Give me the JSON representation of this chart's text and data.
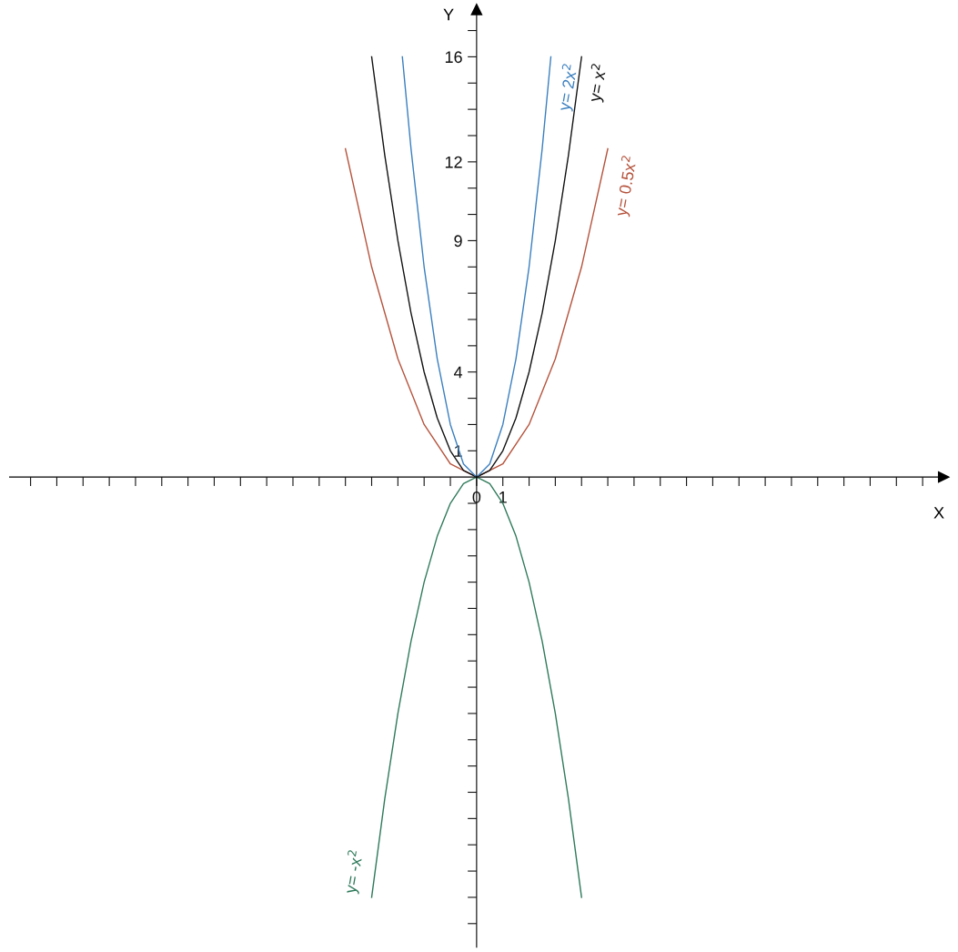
{
  "chart_data": {
    "type": "line",
    "xlabel": "X",
    "ylabel": "Y",
    "grid": false,
    "legend": false,
    "marker": "none",
    "line_style": "solid",
    "xlim": [
      -17.8,
      17.8
    ],
    "ylim": [
      -17.9,
      17.8
    ],
    "xticks": [
      {
        "value": -17,
        "label": null
      },
      {
        "value": -16,
        "label": null
      },
      {
        "value": -15,
        "label": null
      },
      {
        "value": -14,
        "label": null
      },
      {
        "value": -13,
        "label": null
      },
      {
        "value": -12,
        "label": null
      },
      {
        "value": -11,
        "label": null
      },
      {
        "value": -10,
        "label": null
      },
      {
        "value": -9,
        "label": null
      },
      {
        "value": -8,
        "label": null
      },
      {
        "value": -7,
        "label": null
      },
      {
        "value": -6,
        "label": null
      },
      {
        "value": -5,
        "label": null
      },
      {
        "value": -4,
        "label": null
      },
      {
        "value": -3,
        "label": null
      },
      {
        "value": -2,
        "label": null
      },
      {
        "value": -1,
        "label": null
      },
      0,
      1,
      {
        "value": 2,
        "label": null
      },
      {
        "value": 3,
        "label": null
      },
      {
        "value": 4,
        "label": null
      },
      {
        "value": 5,
        "label": null
      },
      {
        "value": 6,
        "label": null
      },
      {
        "value": 7,
        "label": null
      },
      {
        "value": 8,
        "label": null
      },
      {
        "value": 9,
        "label": null
      },
      {
        "value": 10,
        "label": null
      },
      {
        "value": 11,
        "label": null
      },
      {
        "value": 12,
        "label": null
      },
      {
        "value": 13,
        "label": null
      },
      {
        "value": 14,
        "label": null
      },
      {
        "value": 15,
        "label": null
      },
      {
        "value": 16,
        "label": null
      },
      {
        "value": 17,
        "label": null
      }
    ],
    "yticks": [
      {
        "value": -17,
        "label": null
      },
      {
        "value": -16,
        "label": null
      },
      {
        "value": -15,
        "label": null
      },
      {
        "value": -14,
        "label": null
      },
      {
        "value": -13,
        "label": null
      },
      {
        "value": -12,
        "label": null
      },
      {
        "value": -11,
        "label": null
      },
      {
        "value": -10,
        "label": null
      },
      {
        "value": -9,
        "label": null
      },
      {
        "value": -8,
        "label": null
      },
      {
        "value": -7,
        "label": null
      },
      {
        "value": -6,
        "label": null
      },
      {
        "value": -5,
        "label": null
      },
      {
        "value": -4,
        "label": null
      },
      {
        "value": -3,
        "label": null
      },
      {
        "value": -2,
        "label": null
      },
      {
        "value": -1,
        "label": null
      },
      1,
      {
        "value": 2,
        "label": null
      },
      {
        "value": 3,
        "label": null
      },
      4,
      {
        "value": 5,
        "label": null
      },
      {
        "value": 6,
        "label": null
      },
      {
        "value": 7,
        "label": null
      },
      {
        "value": 8,
        "label": null
      },
      9,
      {
        "value": 10,
        "label": null
      },
      {
        "value": 11,
        "label": null
      },
      12,
      {
        "value": 13,
        "label": null
      },
      {
        "value": 14,
        "label": null
      },
      {
        "value": 15,
        "label": null
      },
      16,
      {
        "value": 17,
        "label": null
      }
    ],
    "series": [
      {
        "name": "y= 0.5x$^{2}$",
        "color": "#b5533c",
        "x": [
          -5,
          -4,
          -3,
          -2,
          -1,
          0,
          1,
          2,
          3,
          4,
          5
        ],
        "values": [
          12.5,
          8,
          4.5,
          2,
          0.5,
          0,
          0.5,
          2,
          4.5,
          8,
          12.5
        ]
      },
      {
        "name": "y= x$^{2}$",
        "color": "#111111",
        "x": [
          -4,
          -3.5,
          -3,
          -2.5,
          -2,
          -1.5,
          -1,
          -0.5,
          0,
          0.5,
          1,
          1.5,
          2,
          2.5,
          3,
          3.5,
          4
        ],
        "values": [
          16,
          12.25,
          9,
          6.25,
          4,
          2.25,
          1,
          0.25,
          0,
          0.25,
          1,
          2.25,
          4,
          6.25,
          9,
          12.25,
          16
        ]
      },
      {
        "name": "y= 2x$^{2}$",
        "color": "#3a7fbf",
        "x": [
          -2.83,
          -2.5,
          -2,
          -1.5,
          -1,
          -0.5,
          0,
          0.5,
          1,
          1.5,
          2,
          2.5,
          2.83
        ],
        "values": [
          16,
          12.5,
          8,
          4.5,
          2,
          0.5,
          0,
          0.5,
          2,
          4.5,
          8,
          12.5,
          16
        ]
      },
      {
        "name": "y= -x$^{2}$",
        "color": "#2e7a5a",
        "x": [
          -4,
          -3.5,
          -3,
          -2.5,
          -2,
          -1.5,
          -1,
          -0.5,
          0,
          0.5,
          1,
          1.5,
          2,
          2.5,
          3,
          3.5,
          4
        ],
        "values": [
          -16,
          -12.25,
          -9,
          -6.25,
          -4,
          -2.25,
          -1,
          -0.25,
          0,
          -0.25,
          -1,
          -2.25,
          -4,
          -6.25,
          -9,
          -12.25,
          -16
        ]
      }
    ]
  }
}
